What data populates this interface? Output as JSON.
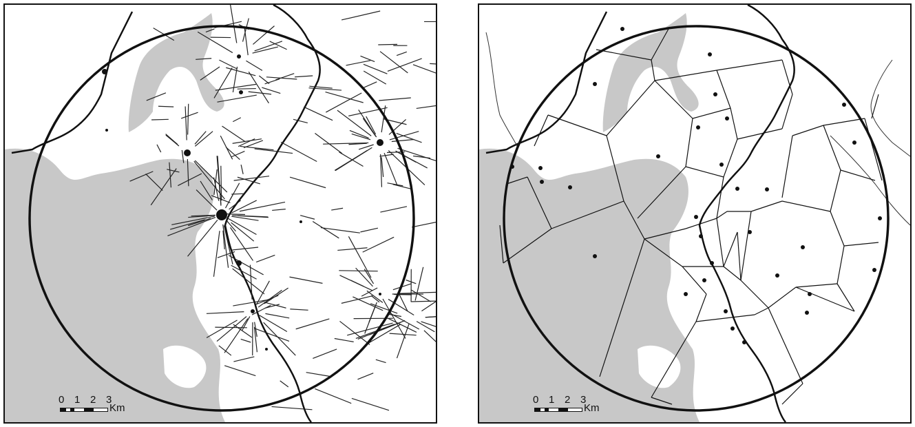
{
  "scale_bar": {
    "ticks": [
      "0",
      "1",
      "2",
      "3"
    ],
    "unit": "Km"
  },
  "colors": {
    "land": "#ffffff",
    "lake": "#c8c8c8",
    "river": "#111111",
    "stream": "#222222",
    "boundary": "#111111"
  },
  "panels": [
    {
      "id": "left",
      "content": "site-catchment-streams"
    },
    {
      "id": "right",
      "content": "voronoi-tessellation"
    }
  ]
}
